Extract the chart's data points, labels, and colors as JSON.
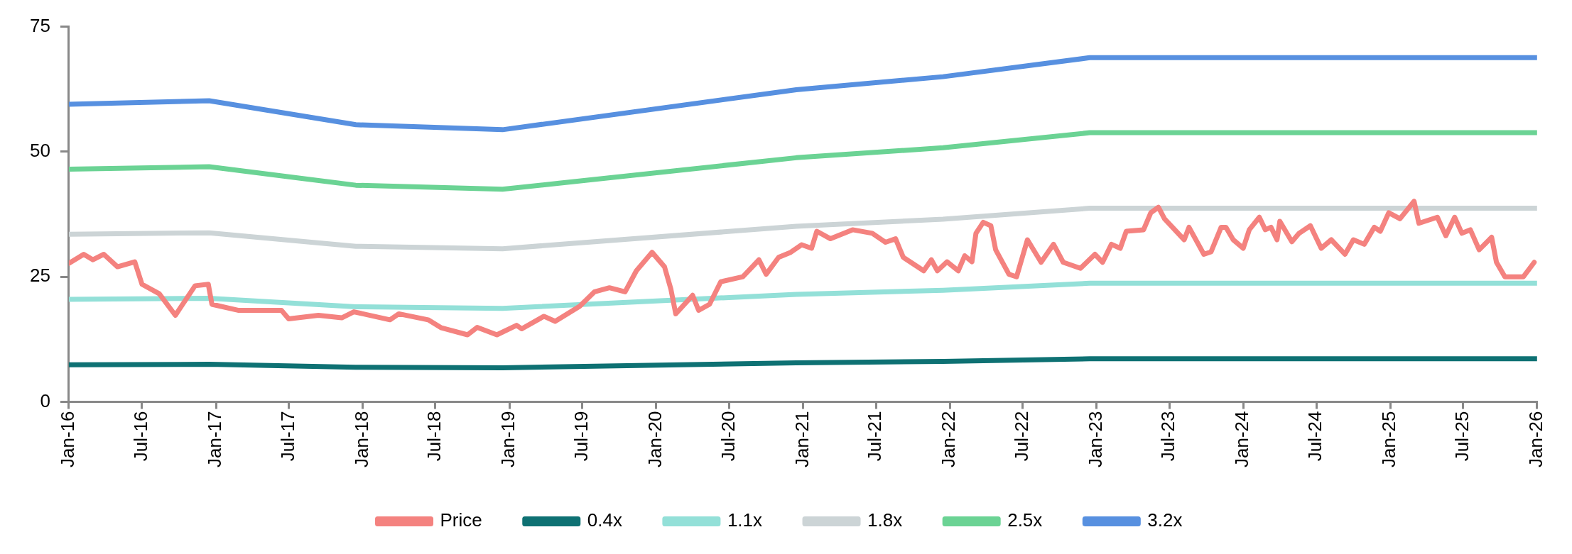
{
  "chart_data": {
    "type": "line",
    "xlim": [
      "2016-01-01",
      "2026-01-01"
    ],
    "xticks": [
      {
        "value": "2016-01-01",
        "label": "Jan-16"
      },
      {
        "value": "2016-07-01",
        "label": "Jul-16"
      },
      {
        "value": "2017-01-01",
        "label": "Jan-17"
      },
      {
        "value": "2017-07-01",
        "label": "Jul-17"
      },
      {
        "value": "2018-01-01",
        "label": "Jan-18"
      },
      {
        "value": "2018-07-01",
        "label": "Jul-18"
      },
      {
        "value": "2019-01-01",
        "label": "Jan-19"
      },
      {
        "value": "2019-07-01",
        "label": "Jul-19"
      },
      {
        "value": "2020-01-01",
        "label": "Jan-20"
      },
      {
        "value": "2020-07-01",
        "label": "Jul-20"
      },
      {
        "value": "2021-01-01",
        "label": "Jan-21"
      },
      {
        "value": "2021-07-01",
        "label": "Jul-21"
      },
      {
        "value": "2022-01-01",
        "label": "Jan-22"
      },
      {
        "value": "2022-07-01",
        "label": "Jul-22"
      },
      {
        "value": "2023-01-01",
        "label": "Jan-23"
      },
      {
        "value": "2023-07-01",
        "label": "Jul-23"
      },
      {
        "value": "2024-01-01",
        "label": "Jan-24"
      },
      {
        "value": "2024-07-01",
        "label": "Jul-24"
      },
      {
        "value": "2025-01-01",
        "label": "Jan-25"
      },
      {
        "value": "2025-07-01",
        "label": "Jul-25"
      },
      {
        "value": "2026-01-01",
        "label": "Jan-26"
      }
    ],
    "ylim": [
      0,
      75
    ],
    "yticks": [
      0,
      25,
      50,
      75
    ],
    "grid": false,
    "legend": "bottom",
    "marker": "none",
    "series": [
      {
        "name": "Price",
        "color": "#f4827f",
        "x": [
          "2016-01-01",
          "2016-02-07",
          "2016-03-01",
          "2016-03-28",
          "2016-05-01",
          "2016-06-13",
          "2016-07-01",
          "2016-08-13",
          "2016-09-22",
          "2016-11-10",
          "2016-12-13",
          "2016-12-22",
          "2017-02-25",
          "2017-06-13",
          "2017-07-01",
          "2017-09-13",
          "2017-11-10",
          "2017-12-10",
          "2018-03-10",
          "2018-04-01",
          "2018-06-13",
          "2018-07-16",
          "2018-09-19",
          "2018-10-13",
          "2018-12-01",
          "2019-01-19",
          "2019-02-01",
          "2019-03-28",
          "2019-04-25",
          "2019-06-25",
          "2019-08-01",
          "2019-09-07",
          "2019-10-16",
          "2019-11-13",
          "2019-12-22",
          "2020-01-22",
          "2020-02-07",
          "2020-02-19",
          "2020-04-01",
          "2020-04-16",
          "2020-05-13",
          "2020-06-10",
          "2020-08-04",
          "2020-09-13",
          "2020-10-01",
          "2020-11-01",
          "2020-12-01",
          "2020-12-28",
          "2021-01-22",
          "2021-02-04",
          "2021-03-10",
          "2021-05-04",
          "2021-06-22",
          "2021-07-25",
          "2021-08-19",
          "2021-09-07",
          "2021-10-28",
          "2021-11-16",
          "2021-12-01",
          "2021-12-25",
          "2022-01-22",
          "2022-02-07",
          "2022-02-25",
          "2022-03-07",
          "2022-03-25",
          "2022-04-13",
          "2022-04-25",
          "2022-05-28",
          "2022-06-16",
          "2022-07-13",
          "2022-08-16",
          "2022-09-16",
          "2022-10-10",
          "2022-11-22",
          "2022-12-28",
          "2023-01-16",
          "2023-02-07",
          "2023-03-01",
          "2023-03-16",
          "2023-04-28",
          "2023-05-16",
          "2023-06-04",
          "2023-06-19",
          "2023-08-07",
          "2023-08-19",
          "2023-09-25",
          "2023-10-13",
          "2023-11-07",
          "2023-11-19",
          "2023-12-07",
          "2024-01-01",
          "2024-01-16",
          "2024-02-10",
          "2024-02-25",
          "2024-03-10",
          "2024-03-25",
          "2024-04-01",
          "2024-05-01",
          "2024-05-19",
          "2024-06-16",
          "2024-07-13",
          "2024-08-07",
          "2024-09-10",
          "2024-10-01",
          "2024-10-28",
          "2024-11-22",
          "2024-12-07",
          "2024-12-28",
          "2025-01-25",
          "2025-03-01",
          "2025-03-13",
          "2025-04-28",
          "2025-05-19",
          "2025-06-10",
          "2025-06-28",
          "2025-07-19",
          "2025-08-10",
          "2025-09-10",
          "2025-09-22",
          "2025-10-13",
          "2025-11-10",
          "2025-11-28",
          "2025-12-25"
        ],
        "values": [
          27.7,
          29.5,
          28.4,
          29.5,
          27,
          28,
          23.5,
          21.6,
          17.3,
          23.2,
          23.5,
          19.5,
          18.3,
          18.3,
          16.6,
          17.3,
          16.8,
          18,
          16.4,
          17.6,
          16.4,
          14.8,
          13.4,
          14.9,
          13.4,
          15.3,
          14.6,
          17.1,
          16.1,
          19.1,
          22,
          22.8,
          22,
          26.2,
          29.9,
          27,
          22.5,
          17.6,
          21.3,
          18.3,
          19.5,
          24,
          25,
          28.4,
          25.5,
          28.9,
          29.9,
          31.4,
          30.7,
          34.1,
          32.6,
          34.4,
          33.7,
          31.9,
          32.6,
          28.9,
          26.2,
          28.4,
          26.2,
          28,
          26.2,
          29.2,
          28,
          33.7,
          35.9,
          35.2,
          30.4,
          25.5,
          25,
          32.4,
          27.9,
          31.5,
          27.9,
          26.7,
          29.5,
          27.9,
          31.5,
          30.7,
          34.1,
          34.4,
          37.8,
          38.9,
          36.6,
          32.4,
          34.9,
          29.5,
          30,
          34.9,
          34.9,
          32.4,
          30.7,
          34.4,
          36.9,
          34.4,
          34.9,
          32.4,
          36.1,
          32,
          33.7,
          35.2,
          30.7,
          32.4,
          29.5,
          32.4,
          31.5,
          34.9,
          34.1,
          37.8,
          36.6,
          40.1,
          35.7,
          36.9,
          33.2,
          36.9,
          33.7,
          34.4,
          30.4,
          32.9,
          27.9,
          25,
          25,
          25,
          27.9
        ]
      },
      {
        "name": "0.4x",
        "color": "#0e7173",
        "x": [
          "2016-01-01",
          "2016-12-15",
          "2017-12-15",
          "2018-12-15",
          "2020-12-15",
          "2021-12-15",
          "2022-12-15",
          "2026-01-01"
        ],
        "values": [
          7.4,
          7.5,
          6.9,
          6.8,
          7.8,
          8.1,
          8.6,
          8.6
        ]
      },
      {
        "name": "1.1x",
        "color": "#93e0d8",
        "x": [
          "2016-01-01",
          "2016-12-15",
          "2017-12-15",
          "2018-12-15",
          "2020-12-15",
          "2021-12-15",
          "2022-12-15",
          "2026-01-01"
        ],
        "values": [
          20.5,
          20.7,
          19.0,
          18.7,
          21.5,
          22.3,
          23.7,
          23.7
        ]
      },
      {
        "name": "1.8x",
        "color": "#ccd4d6",
        "x": [
          "2016-01-01",
          "2016-12-15",
          "2017-12-15",
          "2018-12-15",
          "2020-12-15",
          "2021-12-15",
          "2022-12-15",
          "2026-01-01"
        ],
        "values": [
          33.5,
          33.8,
          31.1,
          30.6,
          35.1,
          36.5,
          38.7,
          38.7
        ]
      },
      {
        "name": "2.5x",
        "color": "#6bd394",
        "x": [
          "2016-01-01",
          "2016-12-15",
          "2017-12-15",
          "2018-12-15",
          "2020-12-15",
          "2021-12-15",
          "2022-12-15",
          "2026-01-01"
        ],
        "values": [
          46.5,
          47.0,
          43.3,
          42.5,
          48.8,
          50.8,
          53.8,
          53.8
        ]
      },
      {
        "name": "3.2x",
        "color": "#5790e0",
        "x": [
          "2016-01-01",
          "2016-12-15",
          "2017-12-15",
          "2018-12-15",
          "2020-12-15",
          "2021-12-15",
          "2022-12-15",
          "2026-01-01"
        ],
        "values": [
          59.5,
          60.2,
          55.4,
          54.4,
          62.4,
          65.0,
          68.8,
          68.8
        ]
      }
    ]
  }
}
